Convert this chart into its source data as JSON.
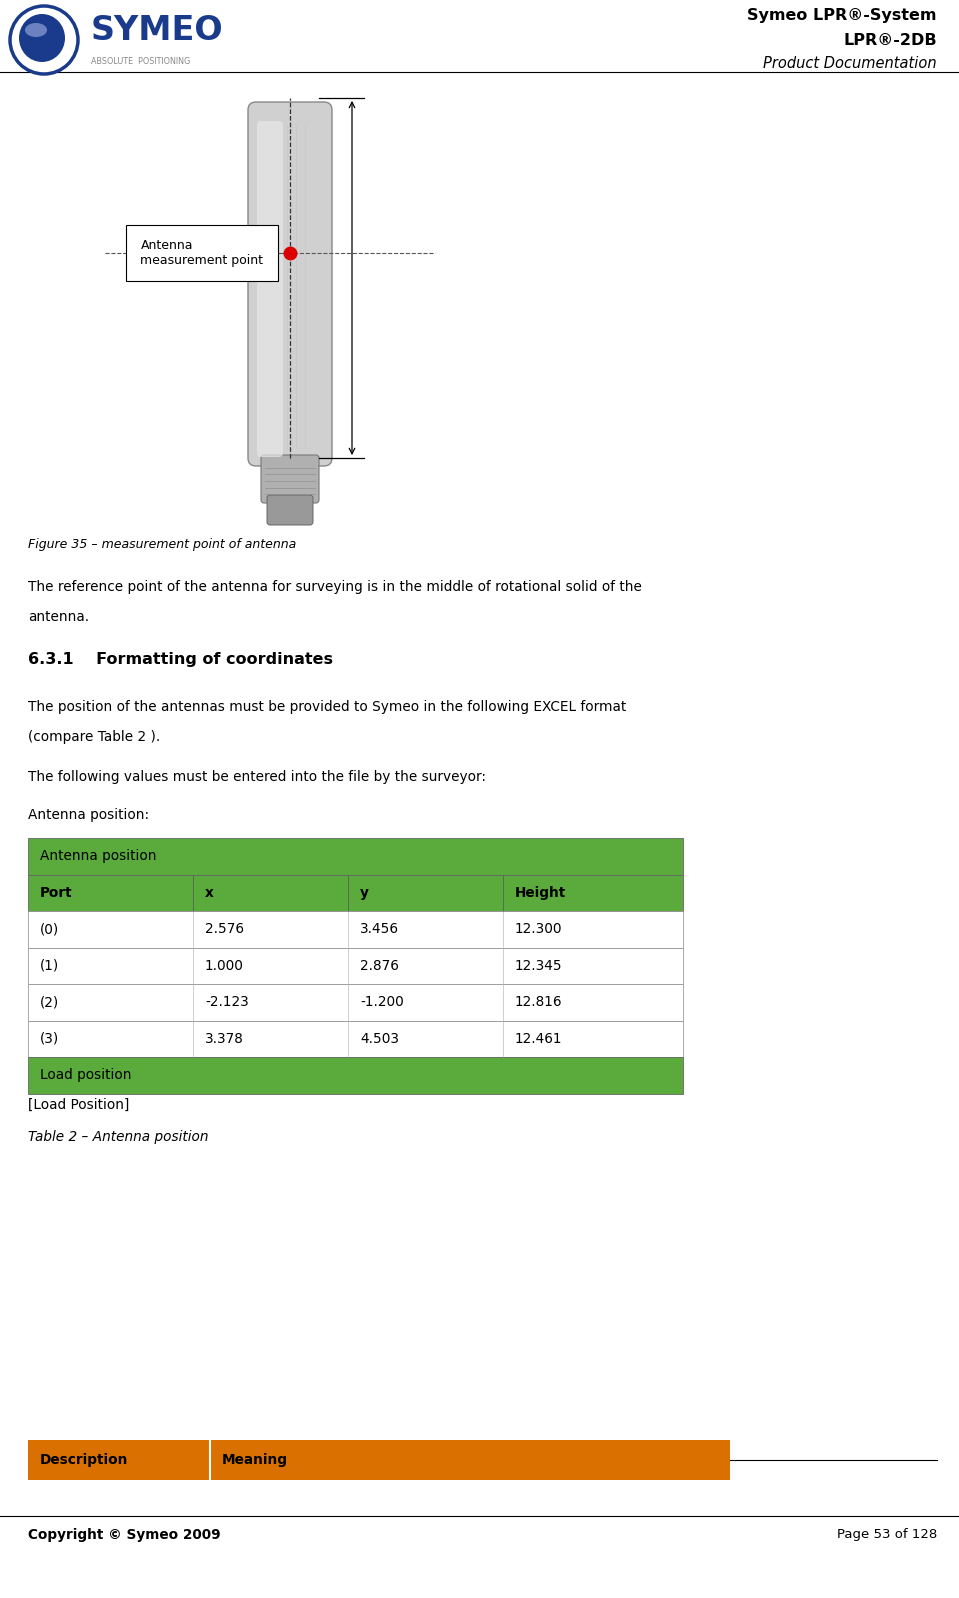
{
  "page_width": 9.59,
  "page_height": 15.98,
  "bg_color": "#ffffff",
  "header_title1": "Symeo LPR®-System",
  "header_title2": "LPR®-2DB",
  "header_title3": "Product Documentation",
  "figure_caption": "Figure 35 – measurement point of antenna",
  "body_line1a": "The reference point of the antenna for surveying is in the middle of rotational solid of the",
  "body_line1b": "antenna.",
  "section_heading_num": "6.3.1",
  "section_heading_txt": "Formatting of coordinates",
  "body_line2a": "The position of the antennas must be provided to Symeo in the following EXCEL format",
  "body_line2b": "(compare Table 2 ).",
  "body_line3": "The following values must be entered into the file by the surveyor:",
  "body_line4": "Antenna position:",
  "table_header_span": "Antenna position",
  "table_columns": [
    "Port",
    "x",
    "y",
    "Height"
  ],
  "table_data": [
    [
      "(0)",
      "2.576",
      "3.456",
      "12.300"
    ],
    [
      "(1)",
      "1.000",
      "2.876",
      "12.345"
    ],
    [
      "(2)",
      "-2.123",
      "-1.200",
      "12.816"
    ],
    [
      "(3)",
      "3.378",
      "4.503",
      "12.461"
    ]
  ],
  "table_load_text": "Load position",
  "load_position_text": "[Load Position]",
  "table_caption": "Table 2 – Antenna position",
  "bot_col1": "Description",
  "bot_col2": "Meaning",
  "footer_copyright": "Copyright © Symeo 2009",
  "footer_page": "Page 53 of 128",
  "green_color": "#5aaa3c",
  "orange_color": "#d97000",
  "antenna_label": "Antenna\nmeasurement point",
  "dpi": 100
}
